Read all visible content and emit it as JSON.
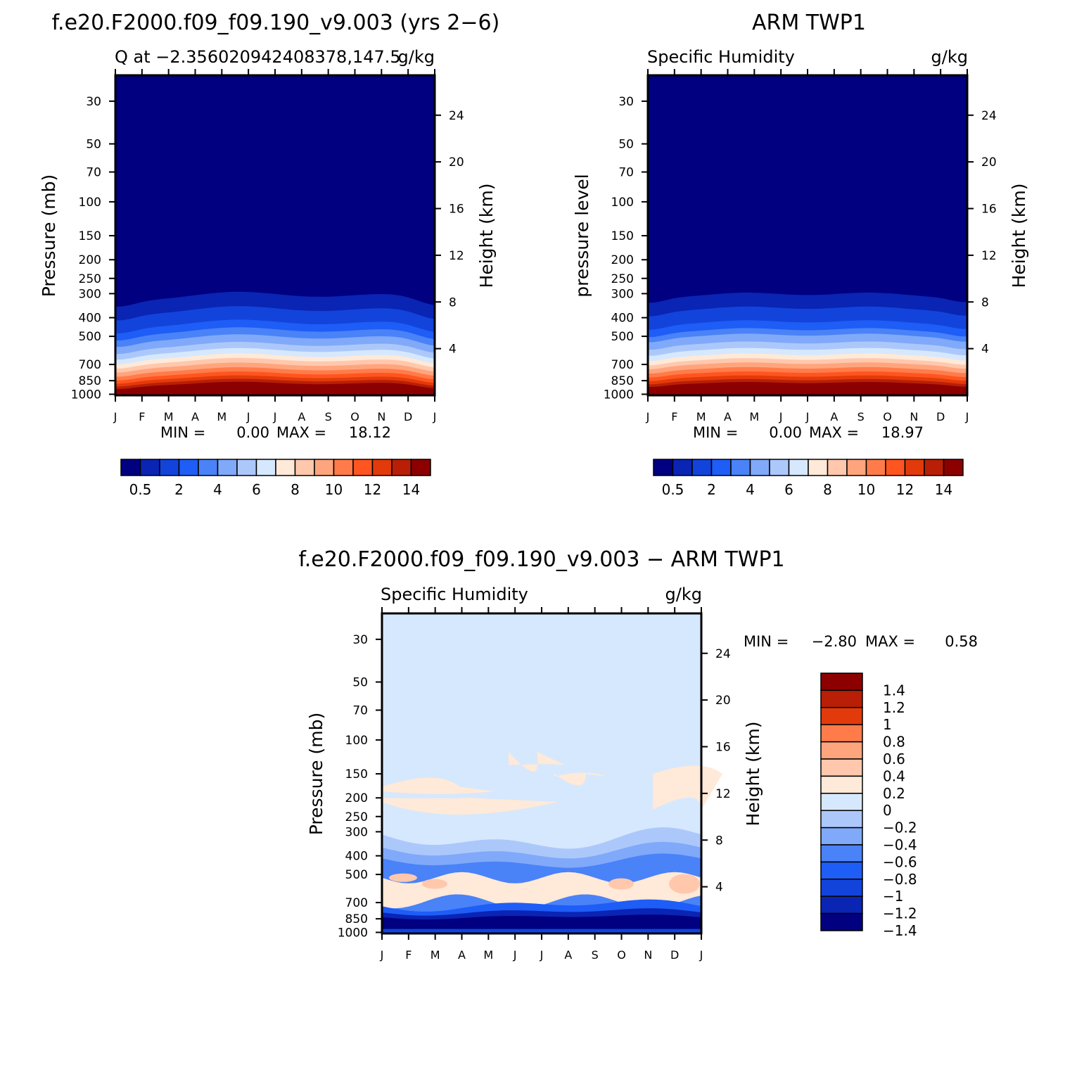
{
  "colors": {
    "q_fill": [
      "#000080",
      "#0a24b4",
      "#1244dc",
      "#1e5df6",
      "#4a82f8",
      "#80a9f9",
      "#acc8fb",
      "#d6e8fd",
      "#ffe9d8",
      "#ffc8ad",
      "#ffa57e",
      "#ff7c4a",
      "#ff5520",
      "#e23a0a",
      "#b81f06",
      "#8c0000"
    ],
    "diff_fill": [
      "#000080",
      "#0a24b4",
      "#1244dc",
      "#1e5df6",
      "#4a82f8",
      "#80a9f9",
      "#acc8fb",
      "#d6e8fd",
      "#ffe9d8",
      "#ffc8ad",
      "#ffa57e",
      "#ff7c4a",
      "#e23a0a",
      "#b81f06",
      "#8c0000"
    ]
  },
  "chart_data": [
    {
      "type": "heatmap",
      "figure_title": "f.e20.F2000.f09_f09.190_v9.003 (yrs 2−6)",
      "subtitle_left": "Q at −2.356020942408378,147.5",
      "subtitle_right": "g/kg",
      "ylabel": "Pressure (mb)",
      "ylabel_right": "Height (km)",
      "x_ticks": [
        "J",
        "F",
        "M",
        "A",
        "M",
        "J",
        "J",
        "A",
        "S",
        "O",
        "N",
        "D",
        "J"
      ],
      "y_ticks": [
        "30",
        "50",
        "70",
        "100",
        "150",
        "200",
        "250",
        "300",
        "400",
        "500",
        "700",
        "850",
        "1000"
      ],
      "y_ticks_right": [
        "24",
        "20",
        "16",
        "12",
        "8",
        "4"
      ],
      "min_max": {
        "min_label": "MIN =",
        "min": "0.00",
        "max_label": "MAX =",
        "max": "18.12"
      },
      "colorbar_labels": [
        "0.5",
        "2",
        "4",
        "6",
        "8",
        "10",
        "12",
        "14"
      ],
      "colorbar_levels": [
        0.5,
        1,
        2,
        3,
        4,
        5,
        6,
        7,
        8,
        9,
        10,
        11,
        12,
        13,
        14
      ],
      "vertical_profile_g_per_kg": {
        "30": 0,
        "50": 0,
        "100": 0,
        "200": 0.01,
        "300": 0.4,
        "400": 1.3,
        "500": 3.6,
        "700": 8.5,
        "850": 12.5,
        "1000": 18
      }
    },
    {
      "type": "heatmap",
      "figure_title": "ARM TWP1",
      "subtitle_left": "Specific Humidity",
      "subtitle_right": "g/kg",
      "ylabel": "pressure level",
      "ylabel_right": "Height (km)",
      "x_ticks": [
        "J",
        "F",
        "M",
        "A",
        "M",
        "J",
        "J",
        "A",
        "S",
        "O",
        "N",
        "D",
        "J"
      ],
      "y_ticks": [
        "30",
        "50",
        "70",
        "100",
        "150",
        "200",
        "250",
        "300",
        "400",
        "500",
        "700",
        "850",
        "1000"
      ],
      "y_ticks_right": [
        "24",
        "20",
        "16",
        "12",
        "8",
        "4"
      ],
      "min_max": {
        "min_label": "MIN =",
        "min": "0.00",
        "max_label": "MAX =",
        "max": "18.97"
      },
      "colorbar_labels": [
        "0.5",
        "2",
        "4",
        "6",
        "8",
        "10",
        "12",
        "14"
      ],
      "colorbar_levels": [
        0.5,
        1,
        2,
        3,
        4,
        5,
        6,
        7,
        8,
        9,
        10,
        11,
        12,
        13,
        14
      ],
      "vertical_profile_g_per_kg": {
        "30": 0,
        "50": 0,
        "100": 0,
        "200": 0.01,
        "300": 0.45,
        "400": 1.5,
        "500": 4,
        "700": 9,
        "850": 13,
        "1000": 18.5
      }
    },
    {
      "type": "heatmap",
      "figure_title": "f.e20.F2000.f09_f09.190_v9.003 − ARM TWP1",
      "subtitle_left": "Specific Humidity",
      "subtitle_right": "g/kg",
      "ylabel": "Pressure (mb)",
      "ylabel_right": "Height (km)",
      "x_ticks": [
        "J",
        "F",
        "M",
        "A",
        "M",
        "J",
        "J",
        "A",
        "S",
        "O",
        "N",
        "D",
        "J"
      ],
      "y_ticks": [
        "30",
        "50",
        "70",
        "100",
        "150",
        "200",
        "250",
        "300",
        "400",
        "500",
        "700",
        "850",
        "1000"
      ],
      "y_ticks_right": [
        "24",
        "20",
        "16",
        "12",
        "8",
        "4"
      ],
      "min_max": {
        "min_label": "MIN =",
        "min": "−2.80",
        "max_label": "MAX =",
        "max": "0.58"
      },
      "colorbar_labels": [
        "1.4",
        "1.2",
        "1",
        "0.8",
        "0.6",
        "0.4",
        "0.2",
        "0",
        "−0.2",
        "−0.4",
        "−0.6",
        "−0.8",
        "−1",
        "−1.2",
        "−1.4"
      ],
      "colorbar_levels": [
        -1.4,
        -1.2,
        -1.0,
        -0.8,
        -0.6,
        -0.4,
        -0.2,
        0,
        0.2,
        0.4,
        0.6,
        0.8,
        1.0,
        1.2,
        1.4
      ],
      "features_g_per_kg": {
        "upper_troposphere_anomaly_range": [
          0,
          0.2
        ],
        "mid_troposphere_400_500mb_min": -1.2,
        "lower_troposphere_850_1000mb_min": -2.8,
        "positive_500_700mb_max": 0.58
      }
    }
  ]
}
